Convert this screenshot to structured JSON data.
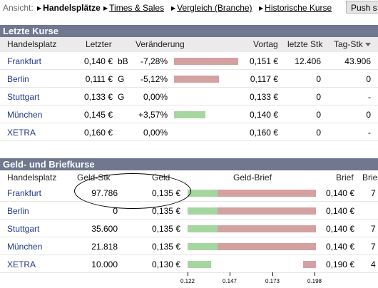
{
  "nav": {
    "label": "Ansicht:",
    "items": [
      {
        "label": "Handelsplätze",
        "active": true
      },
      {
        "label": "Times & Sales",
        "active": false
      },
      {
        "label": "Vergleich (Branche)",
        "active": false
      },
      {
        "label": "Historische Kurse",
        "active": false
      }
    ],
    "push_label": "Push s"
  },
  "letzte_kurse": {
    "title": "Letzte Kurse",
    "headers": [
      "Handelsplatz",
      "Letzter",
      "Veränderung",
      "Vortag",
      "letzte Stk",
      "Tag-Stk"
    ],
    "rows": [
      {
        "place": "Frankfurt",
        "last": "0,140 €",
        "flag": "bB",
        "change": "-7,28%",
        "change_value": -7.28,
        "prev": "0,151 €",
        "last_qty": "12.406",
        "day_qty": "43.906"
      },
      {
        "place": "Berlin",
        "last": "0,111 €",
        "flag": "G",
        "change": "-5,12%",
        "change_value": -5.12,
        "prev": "0,117 €",
        "last_qty": "0",
        "day_qty": "0"
      },
      {
        "place": "Stuttgart",
        "last": "0,133 €",
        "flag": "G",
        "change": "0,00%",
        "change_value": 0,
        "prev": "0,133 €",
        "last_qty": "0",
        "day_qty": "-"
      },
      {
        "place": "München",
        "last": "0,145 €",
        "flag": "",
        "change": "+3,57%",
        "change_value": 3.57,
        "prev": "0,140 €",
        "last_qty": "0",
        "day_qty": "0"
      },
      {
        "place": "XETRA",
        "last": "0,160 €",
        "flag": "",
        "change": "0,00%",
        "change_value": 0,
        "prev": "0,160 €",
        "last_qty": "0",
        "day_qty": "-"
      }
    ]
  },
  "geld_brief": {
    "title": "Geld- und Briefkurse",
    "headers": [
      "Handelsplatz",
      "Geld-Stk",
      "Geld",
      "Geld-Brief",
      "Brief",
      "Brie"
    ],
    "rows": [
      {
        "place": "Frankfurt",
        "bid_qty": "97.786",
        "bid": "0,135 €",
        "ask": "0,140 €",
        "ask_qty": "7",
        "bid_value": 0.135,
        "ask_value": 0.14
      },
      {
        "place": "Berlin",
        "bid_qty": "0",
        "bid": "0,135 €",
        "ask": "0,140 €",
        "ask_qty": "",
        "bid_value": 0.135,
        "ask_value": 0.14
      },
      {
        "place": "Stuttgart",
        "bid_qty": "35.600",
        "bid": "0,135 €",
        "ask": "0,140 €",
        "ask_qty": "7",
        "bid_value": 0.135,
        "ask_value": 0.14
      },
      {
        "place": "München",
        "bid_qty": "21.818",
        "bid": "0,135 €",
        "ask": "0,140 €",
        "ask_qty": "7",
        "bid_value": 0.135,
        "ask_value": 0.14
      },
      {
        "place": "XETRA",
        "bid_qty": "10.000",
        "bid": "0,130 €",
        "ask": "0,190 €",
        "ask_qty": "4",
        "bid_value": 0.13,
        "ask_value": 0.19
      }
    ],
    "axis_ticks": [
      "0.122",
      "0.147",
      "0.173",
      "0.198"
    ]
  },
  "colors": {
    "header_bg": "#6f7791",
    "neg_bar": "#d4a1a1",
    "pos_bar": "#a6d6a0",
    "link": "#1f3a8a"
  }
}
